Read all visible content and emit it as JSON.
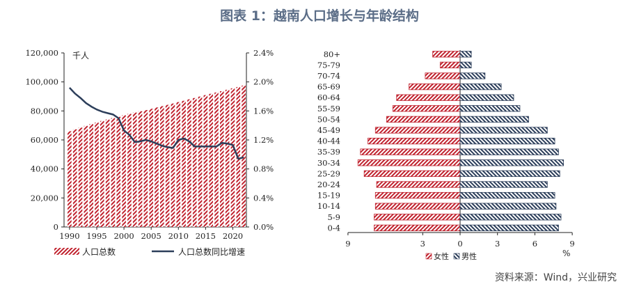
{
  "title": "图表 1：越南人口增长与年龄结构",
  "source": "资料来源：Wind，兴业研究",
  "colors": {
    "red": "#c0222e",
    "navy": "#2c3e5a",
    "title": "#5b6d87"
  },
  "chart_data": [
    {
      "type": "bar+line",
      "unit_label": "千人",
      "x": [
        1990,
        1991,
        1992,
        1993,
        1994,
        1995,
        1996,
        1997,
        1998,
        1999,
        2000,
        2001,
        2002,
        2003,
        2004,
        2005,
        2006,
        2007,
        2008,
        2009,
        2010,
        2011,
        2012,
        2013,
        2014,
        2015,
        2016,
        2017,
        2018,
        2019,
        2020,
        2021,
        2022
      ],
      "x_ticks": [
        "1990",
        "1995",
        "2000",
        "2005",
        "2010",
        "2015",
        "2020"
      ],
      "y_left_ticks": [
        "0",
        "20,000",
        "40,000",
        "60,000",
        "80,000",
        "100,000",
        "120,000"
      ],
      "y_right_ticks": [
        "0.0%",
        "0.4%",
        "0.8%",
        "1.2%",
        "1.6%",
        "2.0%",
        "2.4%"
      ],
      "ylim_left": [
        0,
        120000
      ],
      "ylim_right": [
        0,
        2.4
      ],
      "series": [
        {
          "name": "人口总数",
          "type": "bar",
          "axis": "left",
          "values": [
            66000,
            67300,
            68500,
            69700,
            70900,
            72000,
            73100,
            74100,
            75100,
            76000,
            77000,
            78000,
            78900,
            79800,
            80600,
            81500,
            82400,
            83300,
            84200,
            85100,
            86100,
            87000,
            88000,
            88900,
            89900,
            90900,
            91800,
            92700,
            93600,
            94600,
            95600,
            96500,
            97500
          ]
        },
        {
          "name": "人口总数同比增速",
          "type": "line",
          "axis": "right",
          "values": [
            1.92,
            1.84,
            1.78,
            1.71,
            1.66,
            1.62,
            1.59,
            1.57,
            1.55,
            1.5,
            1.33,
            1.27,
            1.17,
            1.18,
            1.2,
            1.18,
            1.15,
            1.12,
            1.1,
            1.09,
            1.2,
            1.22,
            1.18,
            1.11,
            1.11,
            1.11,
            1.11,
            1.11,
            1.16,
            1.15,
            1.13,
            0.94,
            0.96
          ]
        }
      ]
    },
    {
      "type": "bar",
      "orientation": "horizontal",
      "categories": [
        "80+",
        "75-79",
        "70-74",
        "65-69",
        "60-64",
        "55-59",
        "50-54",
        "45-49",
        "40-44",
        "35-39",
        "30-34",
        "25-29",
        "20-24",
        "15-19",
        "10-14",
        "5-9",
        "0-4"
      ],
      "x_ticks": [
        "9",
        "3",
        "0",
        "3",
        "6",
        "9"
      ],
      "x_unit": "%",
      "series": [
        {
          "name": "女性",
          "values": [
            2.2,
            1.6,
            2.8,
            4.1,
            5.1,
            5.4,
            5.9,
            6.8,
            7.4,
            8.0,
            8.2,
            7.7,
            6.7,
            6.8,
            6.8,
            6.9,
            6.9
          ]
        },
        {
          "name": "男性",
          "values": [
            0.9,
            0.9,
            2.0,
            3.3,
            4.3,
            4.8,
            5.5,
            7.0,
            7.6,
            7.9,
            8.3,
            8.0,
            7.0,
            7.6,
            7.7,
            8.1,
            7.9
          ]
        }
      ]
    }
  ]
}
